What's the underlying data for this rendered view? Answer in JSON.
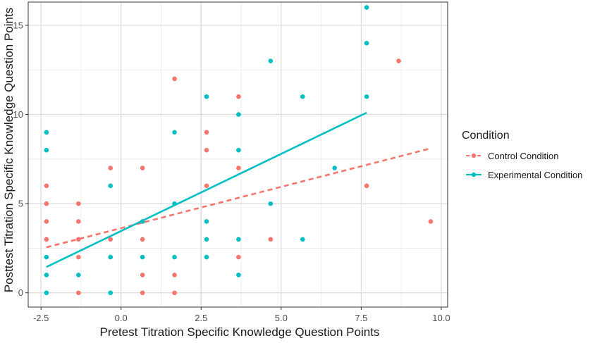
{
  "chart_data": {
    "type": "scatter",
    "xlabel": "Pretest Titration Specific Knowledge Question Points",
    "ylabel": "Posttest Titration Specific Knowledge Question Points",
    "xlim": [
      -2.9,
      10.2
    ],
    "ylim": [
      -0.8,
      16.3
    ],
    "x_ticks": [
      -2.5,
      0.0,
      2.5,
      5.0,
      7.5,
      10.0
    ],
    "x_tick_labels": [
      "-2.5",
      "0.0",
      "2.5",
      "5.0",
      "7.5",
      "10.0"
    ],
    "y_ticks": [
      0,
      5,
      10,
      15
    ],
    "y_tick_labels": [
      "0",
      "5",
      "10",
      "15"
    ],
    "grid": true,
    "legend": {
      "title": "Condition",
      "position": "right",
      "entries": [
        "Control Condition",
        "Experimental Condition"
      ]
    },
    "series": [
      {
        "name": "Control Condition",
        "color": "#F8766D",
        "line_style": "dashed",
        "points": [
          [
            -2.33,
            6
          ],
          [
            -2.33,
            5
          ],
          [
            -2.33,
            4
          ],
          [
            -2.33,
            3
          ],
          [
            -1.33,
            5
          ],
          [
            -1.33,
            4
          ],
          [
            -1.33,
            3
          ],
          [
            -1.33,
            2
          ],
          [
            -1.33,
            0
          ],
          [
            -0.33,
            7
          ],
          [
            -0.33,
            3
          ],
          [
            0.67,
            7
          ],
          [
            0.67,
            4
          ],
          [
            0.67,
            3
          ],
          [
            0.67,
            1
          ],
          [
            0.67,
            0
          ],
          [
            1.67,
            12
          ],
          [
            1.67,
            1
          ],
          [
            1.67,
            0
          ],
          [
            2.67,
            9
          ],
          [
            2.67,
            8
          ],
          [
            2.67,
            6
          ],
          [
            3.67,
            11
          ],
          [
            3.67,
            7
          ],
          [
            3.67,
            2
          ],
          [
            4.67,
            3
          ],
          [
            7.67,
            6
          ],
          [
            8.67,
            13
          ],
          [
            9.67,
            4
          ]
        ],
        "fit_line": [
          [
            -2.33,
            2.55
          ],
          [
            9.67,
            8.1
          ]
        ]
      },
      {
        "name": "Experimental Condition",
        "color": "#00BFC4",
        "line_style": "solid",
        "points": [
          [
            -2.33,
            9
          ],
          [
            -2.33,
            8
          ],
          [
            -2.33,
            2
          ],
          [
            -2.33,
            1
          ],
          [
            -2.33,
            0
          ],
          [
            -1.33,
            1
          ],
          [
            -0.33,
            6
          ],
          [
            -0.33,
            2
          ],
          [
            -0.33,
            0
          ],
          [
            0.67,
            4
          ],
          [
            0.67,
            2
          ],
          [
            1.67,
            9
          ],
          [
            1.67,
            5
          ],
          [
            1.67,
            2
          ],
          [
            2.67,
            11
          ],
          [
            2.67,
            4
          ],
          [
            2.67,
            3
          ],
          [
            2.67,
            2
          ],
          [
            3.67,
            10
          ],
          [
            3.67,
            8
          ],
          [
            3.67,
            3
          ],
          [
            3.67,
            1
          ],
          [
            4.67,
            13
          ],
          [
            4.67,
            5
          ],
          [
            5.67,
            11
          ],
          [
            5.67,
            3
          ],
          [
            6.67,
            7
          ],
          [
            7.67,
            16
          ],
          [
            7.67,
            14
          ],
          [
            7.67,
            11
          ]
        ],
        "fit_line": [
          [
            -2.33,
            1.45
          ],
          [
            7.67,
            10.1
          ]
        ]
      }
    ]
  }
}
